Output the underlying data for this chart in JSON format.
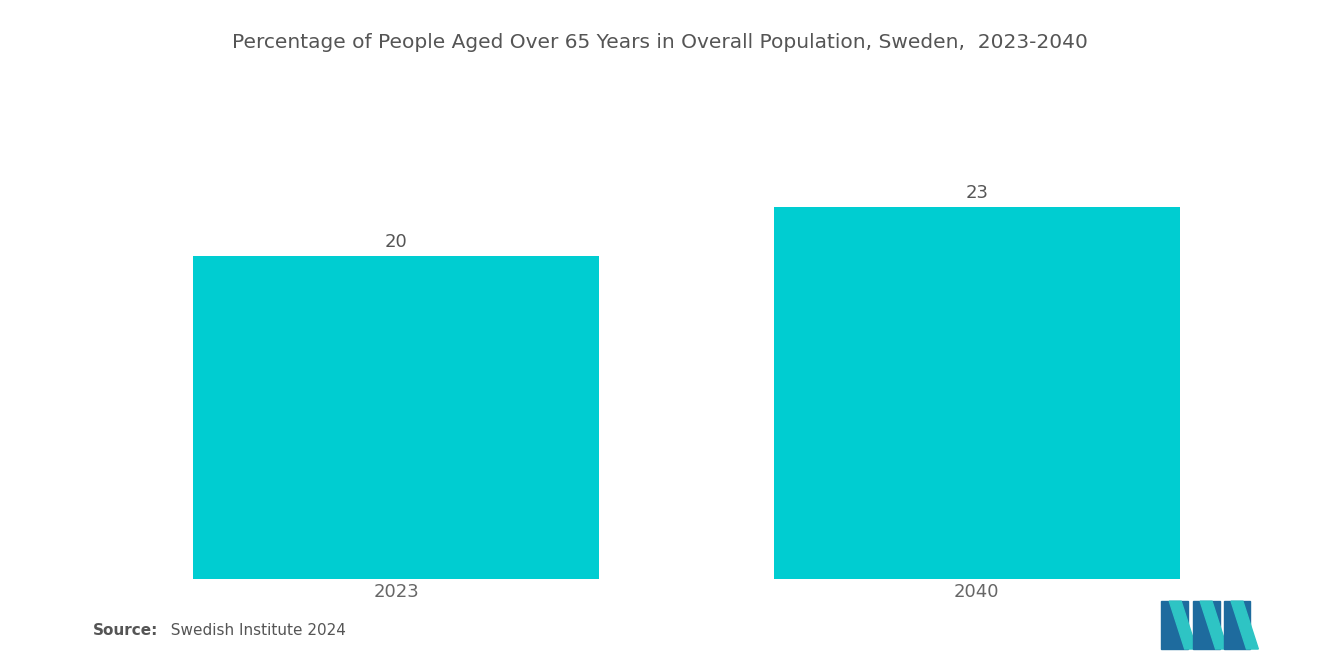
{
  "title": "Percentage of People Aged Over 65 Years in Overall Population, Sweden,  2023-2040",
  "categories": [
    "2023",
    "2040"
  ],
  "values": [
    20,
    23
  ],
  "bar_color": "#00CDD1",
  "background_color": "#ffffff",
  "title_fontsize": 14.5,
  "label_fontsize": 13,
  "value_fontsize": 13,
  "source_bold": "Source:",
  "source_rest": "  Swedish Institute 2024",
  "ylim": [
    0,
    28
  ],
  "bar_positions": [
    1,
    3
  ],
  "bar_width": 1.4,
  "xlim": [
    0,
    4
  ]
}
